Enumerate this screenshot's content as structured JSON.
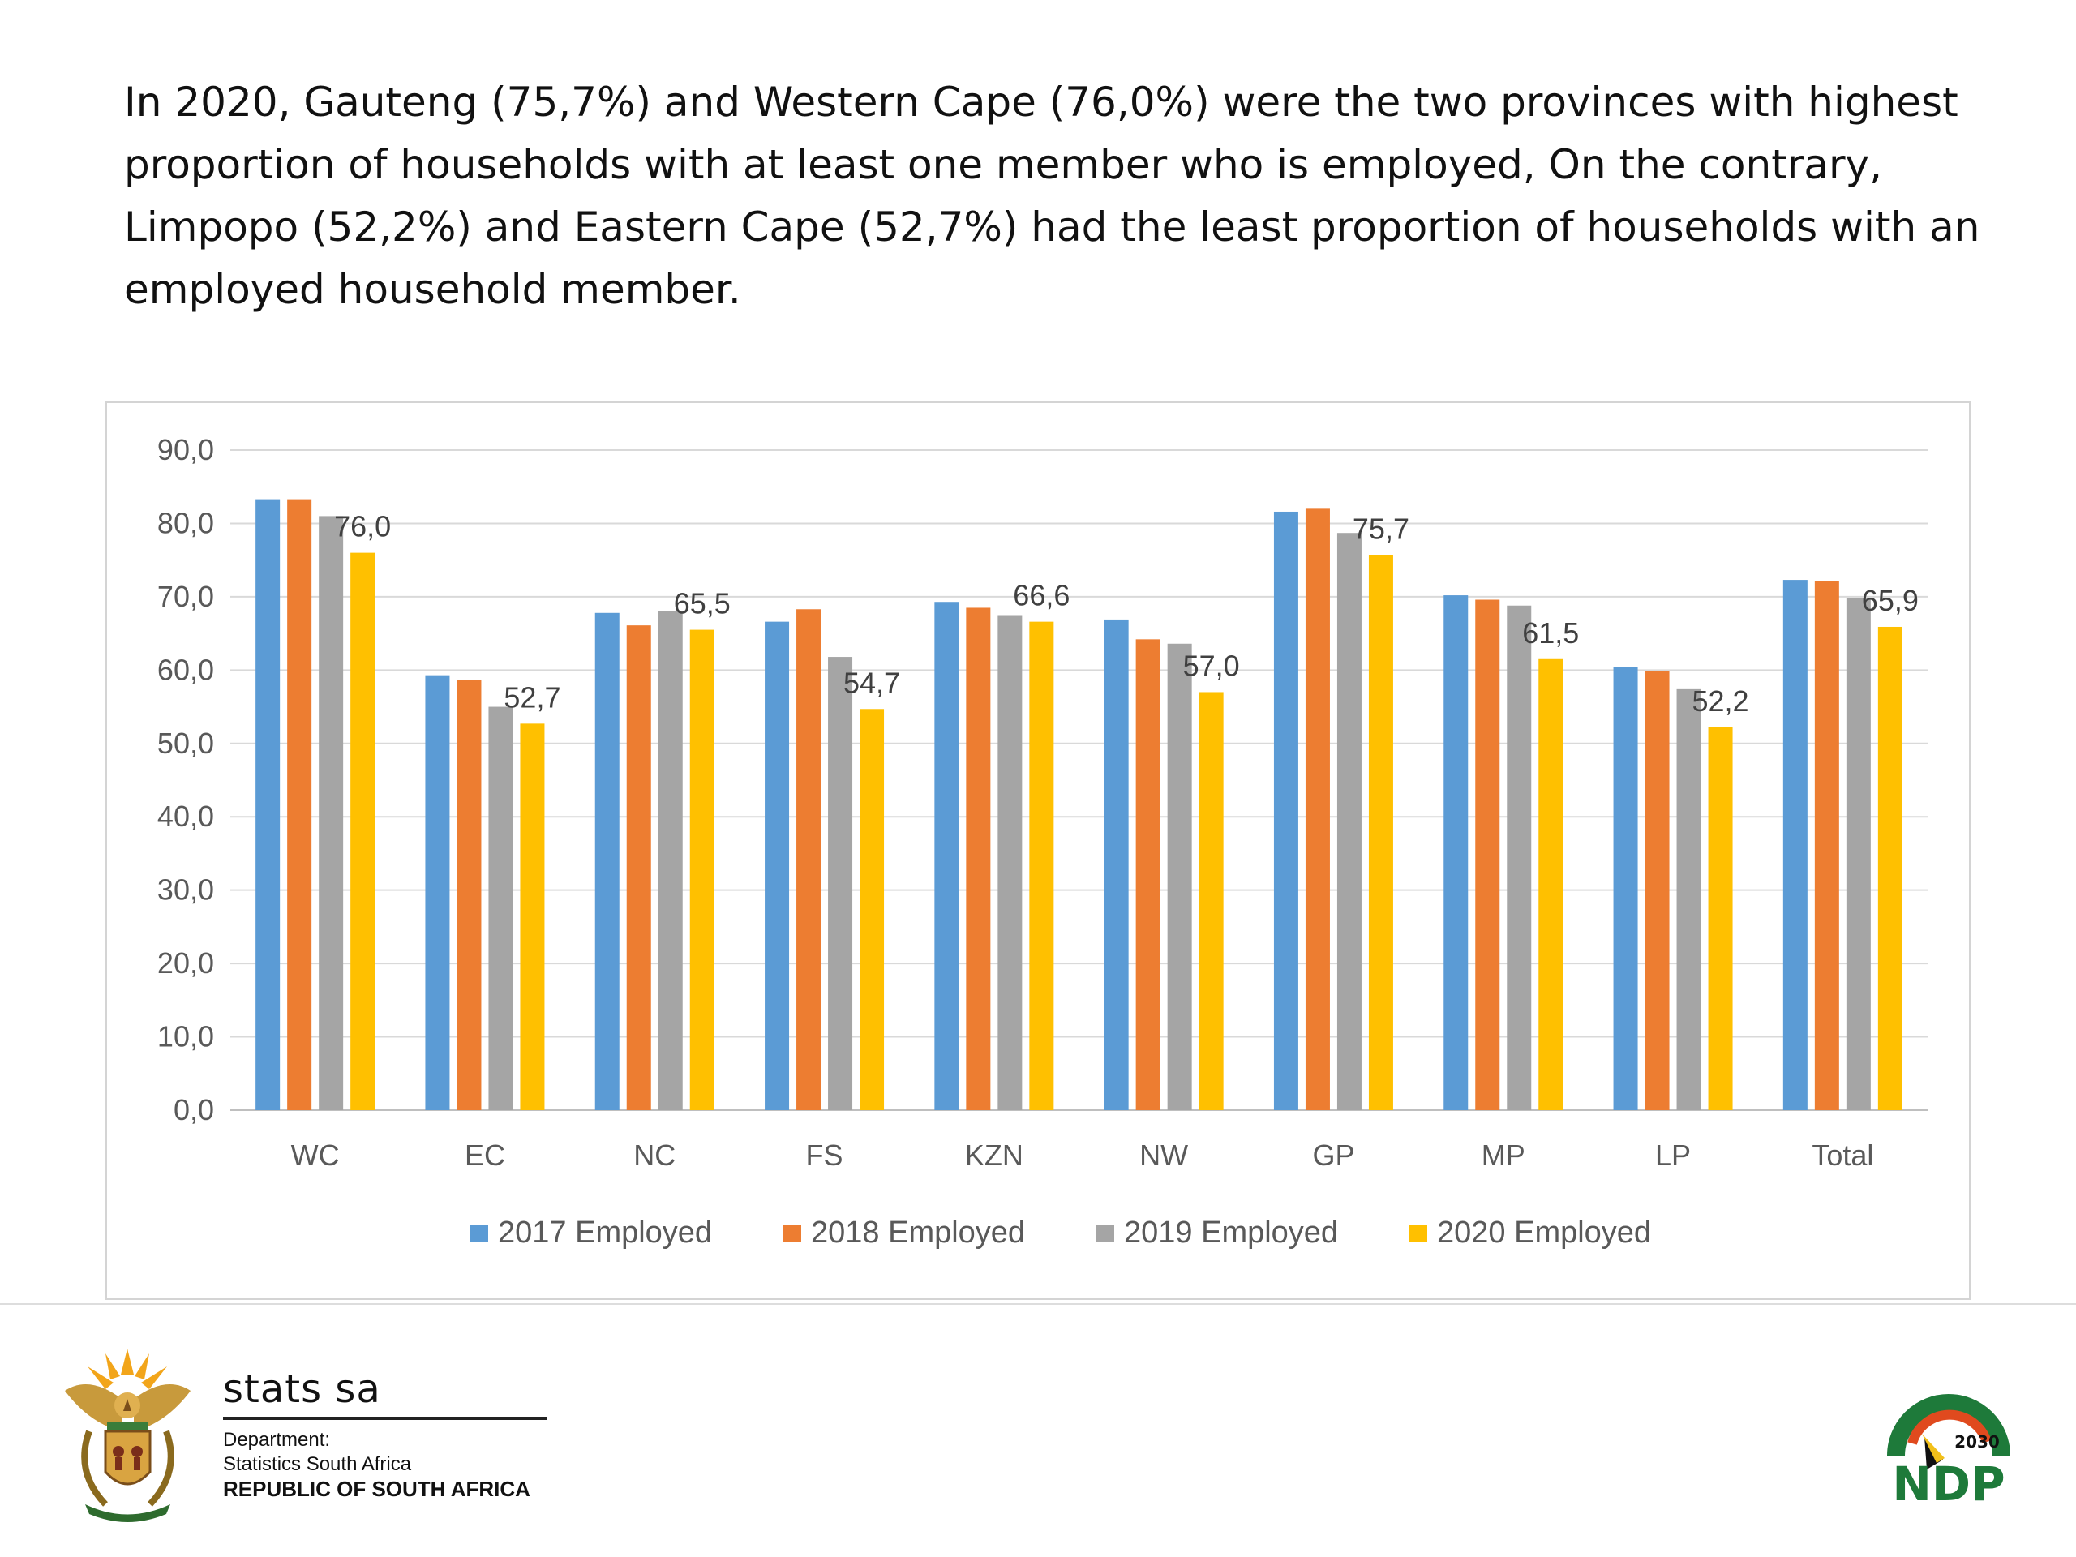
{
  "caption": "In 2020, Gauteng (75,7%) and Western Cape (76,0%) were the two provinces with highest proportion of households with at least one member who is employed, On the contrary, Limpopo (52,2%) and Eastern Cape (52,7%) had the least proportion of households with an employed household member.",
  "chart_data": {
    "type": "bar",
    "categories": [
      "WC",
      "EC",
      "NC",
      "FS",
      "KZN",
      "NW",
      "GP",
      "MP",
      "LP",
      "Total"
    ],
    "series": [
      {
        "name": "2017 Employed",
        "color": "#5b9bd5",
        "values": [
          83.3,
          59.3,
          67.8,
          66.6,
          69.3,
          66.9,
          81.6,
          70.2,
          60.4,
          72.3
        ]
      },
      {
        "name": "2018 Employed",
        "color": "#ed7d31",
        "values": [
          83.3,
          58.7,
          66.1,
          68.3,
          68.5,
          64.2,
          82.0,
          69.6,
          59.9,
          72.1
        ]
      },
      {
        "name": "2019 Employed",
        "color": "#a5a5a5",
        "values": [
          81.0,
          55.0,
          68.0,
          61.8,
          67.5,
          63.6,
          78.7,
          68.8,
          57.4,
          69.8
        ]
      },
      {
        "name": "2020 Employed",
        "color": "#ffc000",
        "values": [
          76.0,
          52.7,
          65.5,
          54.7,
          66.6,
          57.0,
          75.7,
          61.5,
          52.2,
          65.9
        ]
      }
    ],
    "data_labels": {
      "series": "2020 Employed",
      "labels": [
        "76,0",
        "52,7",
        "65,5",
        "54,7",
        "66,6",
        "57,0",
        "75,7",
        "61,5",
        "52,2",
        "65,9"
      ]
    },
    "yticks": [
      "0,0",
      "10,0",
      "20,0",
      "30,0",
      "40,0",
      "50,0",
      "60,0",
      "70,0",
      "80,0",
      "90,0"
    ],
    "ylim": [
      0,
      90
    ],
    "grid": true,
    "legend": "bottom"
  },
  "footer": {
    "brand": "stats sa",
    "dept_lines": [
      "Department:",
      "Statistics South Africa",
      "REPUBLIC OF SOUTH AFRICA"
    ],
    "ndp_year": "2030",
    "ndp_text": "NDP"
  }
}
